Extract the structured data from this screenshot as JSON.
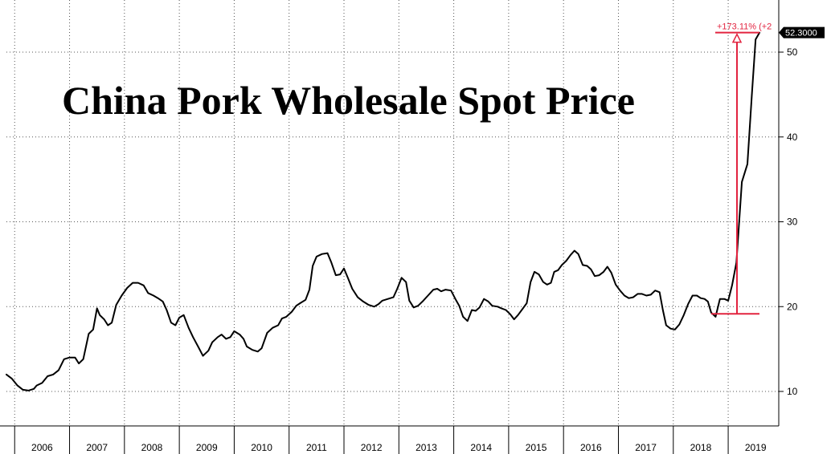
{
  "chart_data": {
    "type": "line",
    "title": "China Pork Wholesale Spot Price",
    "xlabel": "",
    "ylabel": "",
    "x_ticks": [
      "2006",
      "2007",
      "2008",
      "2009",
      "2010",
      "2011",
      "2012",
      "2013",
      "2014",
      "2015",
      "2016",
      "2017",
      "2018",
      "2019"
    ],
    "y_ticks": [
      "10",
      "20",
      "30",
      "40",
      "50"
    ],
    "xlim": [
      2005.8,
      2020.0
    ],
    "ylim": [
      5,
      56
    ],
    "axis_side": "right",
    "grid": "dotted",
    "last_value_label": "52.3000",
    "annotation_text": "+173.11% (+2",
    "annotation_base_value": 19.15,
    "annotation_top_value": 52.3,
    "series": [
      {
        "color": "#000000",
        "points": [
          [
            2005.8,
            12.0
          ],
          [
            2005.9,
            11.5
          ],
          [
            2006.0,
            10.7
          ],
          [
            2006.1,
            10.2
          ],
          [
            2006.2,
            10.1
          ],
          [
            2006.3,
            10.3
          ],
          [
            2006.35,
            10.7
          ],
          [
            2006.45,
            11.0
          ],
          [
            2006.55,
            11.8
          ],
          [
            2006.65,
            12.0
          ],
          [
            2006.75,
            12.5
          ],
          [
            2006.85,
            13.8
          ],
          [
            2006.95,
            14.0
          ],
          [
            2007.05,
            14.0
          ],
          [
            2007.12,
            13.3
          ],
          [
            2007.2,
            13.8
          ],
          [
            2007.3,
            16.8
          ],
          [
            2007.38,
            17.3
          ],
          [
            2007.45,
            19.8
          ],
          [
            2007.5,
            19.0
          ],
          [
            2007.58,
            18.5
          ],
          [
            2007.65,
            17.8
          ],
          [
            2007.72,
            18.1
          ],
          [
            2007.8,
            20.2
          ],
          [
            2007.9,
            21.3
          ],
          [
            2008.0,
            22.2
          ],
          [
            2008.1,
            22.8
          ],
          [
            2008.2,
            22.8
          ],
          [
            2008.3,
            22.5
          ],
          [
            2008.38,
            21.6
          ],
          [
            2008.48,
            21.3
          ],
          [
            2008.56,
            21.0
          ],
          [
            2008.65,
            20.6
          ],
          [
            2008.72,
            19.6
          ],
          [
            2008.8,
            18.1
          ],
          [
            2008.88,
            17.8
          ],
          [
            2008.95,
            18.7
          ],
          [
            2009.03,
            19.0
          ],
          [
            2009.12,
            17.5
          ],
          [
            2009.2,
            16.4
          ],
          [
            2009.3,
            15.2
          ],
          [
            2009.38,
            14.2
          ],
          [
            2009.48,
            14.8
          ],
          [
            2009.55,
            15.8
          ],
          [
            2009.65,
            16.4
          ],
          [
            2009.72,
            16.7
          ],
          [
            2009.8,
            16.2
          ],
          [
            2009.88,
            16.4
          ],
          [
            2009.95,
            17.1
          ],
          [
            2010.05,
            16.7
          ],
          [
            2010.12,
            16.2
          ],
          [
            2010.18,
            15.3
          ],
          [
            2010.28,
            14.9
          ],
          [
            2010.38,
            14.7
          ],
          [
            2010.45,
            15.1
          ],
          [
            2010.55,
            16.9
          ],
          [
            2010.65,
            17.5
          ],
          [
            2010.75,
            17.8
          ],
          [
            2010.82,
            18.6
          ],
          [
            2010.9,
            18.8
          ],
          [
            2011.0,
            19.4
          ],
          [
            2011.08,
            20.1
          ],
          [
            2011.15,
            20.4
          ],
          [
            2011.25,
            20.8
          ],
          [
            2011.32,
            22.0
          ],
          [
            2011.38,
            24.8
          ],
          [
            2011.45,
            25.9
          ],
          [
            2011.55,
            26.2
          ],
          [
            2011.65,
            26.3
          ],
          [
            2011.72,
            25.2
          ],
          [
            2011.8,
            23.7
          ],
          [
            2011.88,
            23.8
          ],
          [
            2011.95,
            24.5
          ],
          [
            2012.02,
            23.4
          ],
          [
            2012.1,
            22.1
          ],
          [
            2012.2,
            21.1
          ],
          [
            2012.3,
            20.6
          ],
          [
            2012.4,
            20.2
          ],
          [
            2012.5,
            20.0
          ],
          [
            2012.58,
            20.3
          ],
          [
            2012.65,
            20.7
          ],
          [
            2012.75,
            20.9
          ],
          [
            2012.85,
            21.1
          ],
          [
            2012.92,
            22.1
          ],
          [
            2013.0,
            23.4
          ],
          [
            2013.08,
            22.9
          ],
          [
            2013.14,
            20.7
          ],
          [
            2013.22,
            19.9
          ],
          [
            2013.3,
            20.1
          ],
          [
            2013.38,
            20.6
          ],
          [
            2013.48,
            21.3
          ],
          [
            2013.58,
            22.0
          ],
          [
            2013.65,
            22.1
          ],
          [
            2013.72,
            21.8
          ],
          [
            2013.8,
            22.0
          ],
          [
            2013.9,
            21.9
          ],
          [
            2013.98,
            20.9
          ],
          [
            2014.05,
            20.1
          ],
          [
            2014.12,
            18.8
          ],
          [
            2014.2,
            18.3
          ],
          [
            2014.28,
            19.6
          ],
          [
            2014.35,
            19.5
          ],
          [
            2014.42,
            19.9
          ],
          [
            2014.5,
            20.9
          ],
          [
            2014.58,
            20.6
          ],
          [
            2014.65,
            20.1
          ],
          [
            2014.75,
            20.0
          ],
          [
            2014.82,
            19.8
          ],
          [
            2014.9,
            19.6
          ],
          [
            2014.98,
            19.1
          ],
          [
            2015.05,
            18.5
          ],
          [
            2015.12,
            19.0
          ],
          [
            2015.2,
            19.7
          ],
          [
            2015.28,
            20.4
          ],
          [
            2015.35,
            22.9
          ],
          [
            2015.42,
            24.1
          ],
          [
            2015.5,
            23.8
          ],
          [
            2015.58,
            22.9
          ],
          [
            2015.65,
            22.6
          ],
          [
            2015.72,
            22.8
          ],
          [
            2015.78,
            24.1
          ],
          [
            2015.85,
            24.3
          ],
          [
            2015.92,
            24.9
          ],
          [
            2016.0,
            25.4
          ],
          [
            2016.08,
            26.1
          ],
          [
            2016.15,
            26.6
          ],
          [
            2016.22,
            26.2
          ],
          [
            2016.3,
            24.9
          ],
          [
            2016.38,
            24.8
          ],
          [
            2016.45,
            24.4
          ],
          [
            2016.52,
            23.6
          ],
          [
            2016.6,
            23.7
          ],
          [
            2016.68,
            24.1
          ],
          [
            2016.75,
            24.7
          ],
          [
            2016.82,
            24.0
          ],
          [
            2016.9,
            22.6
          ],
          [
            2016.98,
            21.9
          ],
          [
            2017.06,
            21.3
          ],
          [
            2017.14,
            21.0
          ],
          [
            2017.22,
            21.1
          ],
          [
            2017.3,
            21.5
          ],
          [
            2017.38,
            21.5
          ],
          [
            2017.46,
            21.3
          ],
          [
            2017.54,
            21.4
          ],
          [
            2017.62,
            21.9
          ],
          [
            2017.7,
            21.7
          ],
          [
            2017.76,
            19.6
          ],
          [
            2017.82,
            17.8
          ],
          [
            2017.9,
            17.4
          ],
          [
            2017.98,
            17.3
          ],
          [
            2018.06,
            17.9
          ],
          [
            2018.14,
            19.0
          ],
          [
            2018.22,
            20.3
          ],
          [
            2018.3,
            21.3
          ],
          [
            2018.38,
            21.3
          ],
          [
            2018.45,
            21.0
          ],
          [
            2018.52,
            20.9
          ],
          [
            2018.58,
            20.6
          ],
          [
            2018.64,
            19.3
          ],
          [
            2018.72,
            18.8
          ],
          [
            2018.8,
            20.9
          ],
          [
            2018.88,
            20.9
          ],
          [
            2018.95,
            20.7
          ],
          [
            2019.02,
            22.5
          ],
          [
            2019.1,
            25.2
          ],
          [
            2019.2,
            34.7
          ],
          [
            2019.3,
            36.8
          ],
          [
            2019.38,
            44.8
          ],
          [
            2019.45,
            51.5
          ],
          [
            2019.52,
            52.3
          ]
        ]
      }
    ]
  }
}
